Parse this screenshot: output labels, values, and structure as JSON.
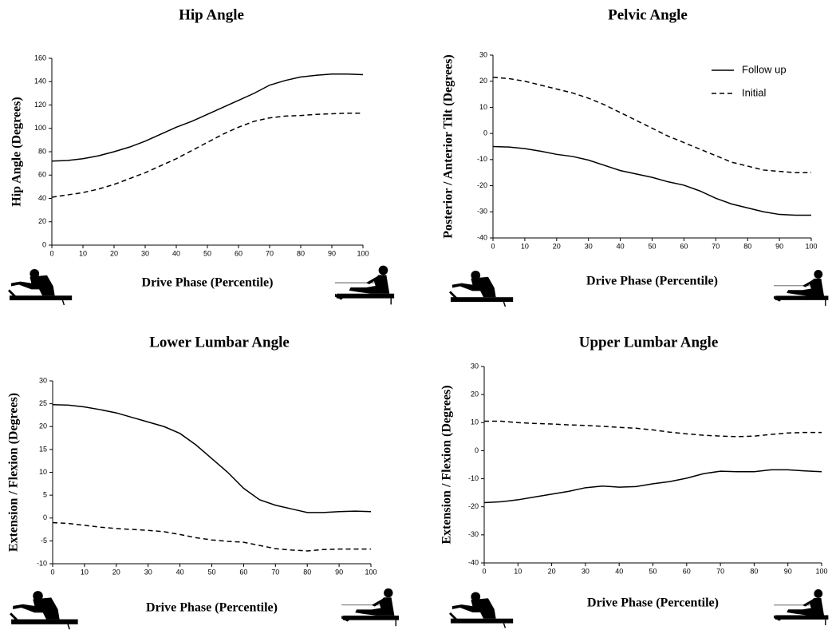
{
  "chart_data": [
    {
      "type": "line",
      "title": "Hip Angle",
      "x_label": "Drive Phase (Percentile)",
      "y_label": "Hip Angle (Degrees)",
      "x": [
        0,
        5,
        10,
        15,
        20,
        25,
        30,
        35,
        40,
        45,
        50,
        55,
        60,
        65,
        70,
        75,
        80,
        85,
        90,
        95,
        100
      ],
      "xlim": [
        0,
        100
      ],
      "xticks": [
        0,
        10,
        20,
        30,
        40,
        50,
        60,
        70,
        80,
        90,
        100
      ],
      "ylim": [
        0,
        160
      ],
      "yticks": [
        0,
        20,
        40,
        60,
        80,
        100,
        120,
        140,
        160
      ],
      "series": [
        {
          "color": "#000000",
          "dash": false,
          "values": [
            72,
            72.5,
            74,
            76.5,
            80,
            84,
            89,
            95,
            101,
            106,
            112,
            118,
            124,
            130,
            137,
            141,
            144,
            145.5,
            146.5,
            146.5,
            146
          ]
        },
        {
          "color": "#000000",
          "dash": true,
          "values": [
            41,
            43,
            45,
            48,
            52,
            57,
            62,
            68,
            74,
            81,
            88,
            95,
            101,
            106,
            109,
            110.5,
            111,
            112,
            112.5,
            113,
            113
          ]
        }
      ]
    },
    {
      "type": "line",
      "title": "Pelvic Angle",
      "x_label": "Drive Phase (Percentile)",
      "y_label": "Posterior / Anterior Tilt (Degrees)",
      "x": [
        0,
        5,
        10,
        15,
        20,
        25,
        30,
        35,
        40,
        45,
        50,
        55,
        60,
        65,
        70,
        75,
        80,
        85,
        90,
        95,
        100
      ],
      "xlim": [
        0,
        100
      ],
      "xticks": [
        0,
        10,
        20,
        30,
        40,
        50,
        60,
        70,
        80,
        90,
        100
      ],
      "ylim": [
        -40,
        30
      ],
      "yticks": [
        -40,
        -30,
        -20,
        -10,
        0,
        10,
        20,
        30
      ],
      "legend": "upper right",
      "series": [
        {
          "name": "Follow up",
          "color": "#000000",
          "dash": false,
          "values": [
            -5,
            -5.2,
            -5.8,
            -6.8,
            -8,
            -8.8,
            -10.2,
            -12.2,
            -14.2,
            -15.5,
            -16.8,
            -18.5,
            -19.8,
            -22,
            -24.8,
            -27,
            -28.5,
            -30,
            -31,
            -31.3,
            -31.3
          ]
        },
        {
          "name": "Initial",
          "color": "#000000",
          "dash": true,
          "values": [
            21.5,
            21,
            20,
            18.5,
            17,
            15.5,
            13.5,
            11,
            8,
            5,
            2,
            -1,
            -3.5,
            -6,
            -8.5,
            -11,
            -12.5,
            -14,
            -14.5,
            -15,
            -15
          ]
        }
      ]
    },
    {
      "type": "line",
      "title": "Lower Lumbar Angle",
      "x_label": "Drive Phase (Percentile)",
      "y_label": "Extension / Flexion (Degrees)",
      "x": [
        0,
        5,
        10,
        15,
        20,
        25,
        30,
        35,
        40,
        45,
        50,
        55,
        60,
        65,
        70,
        75,
        80,
        85,
        90,
        95,
        100
      ],
      "xlim": [
        0,
        100
      ],
      "xticks": [
        0,
        10,
        20,
        30,
        40,
        50,
        60,
        70,
        80,
        90,
        100
      ],
      "ylim": [
        -10,
        30
      ],
      "yticks": [
        -10,
        -5,
        0,
        5,
        10,
        15,
        20,
        25,
        30
      ],
      "series": [
        {
          "color": "#000000",
          "dash": false,
          "values": [
            24.8,
            24.7,
            24.3,
            23.7,
            23,
            22,
            21,
            20,
            18.5,
            16,
            13,
            10,
            6.5,
            4,
            2.8,
            2,
            1.2,
            1.2,
            1.4,
            1.5,
            1.4
          ]
        },
        {
          "color": "#000000",
          "dash": true,
          "values": [
            -1,
            -1.2,
            -1.6,
            -2,
            -2.3,
            -2.5,
            -2.7,
            -3,
            -3.6,
            -4.3,
            -4.8,
            -5.1,
            -5.3,
            -6,
            -6.7,
            -7,
            -7.2,
            -6.9,
            -6.8,
            -6.8,
            -6.8
          ]
        }
      ]
    },
    {
      "type": "line",
      "title": "Upper Lumbar Angle",
      "x_label": "Drive Phase (Percentile)",
      "y_label": "Extension / Flexion (Degrees)",
      "x": [
        0,
        5,
        10,
        15,
        20,
        25,
        30,
        35,
        40,
        45,
        50,
        55,
        60,
        65,
        70,
        75,
        80,
        85,
        90,
        95,
        100
      ],
      "xlim": [
        0,
        100
      ],
      "xticks": [
        0,
        10,
        20,
        30,
        40,
        50,
        60,
        70,
        80,
        90,
        100
      ],
      "ylim": [
        -40,
        30
      ],
      "yticks": [
        -40,
        -30,
        -20,
        -10,
        0,
        10,
        20,
        30
      ],
      "series": [
        {
          "color": "#000000",
          "dash": false,
          "values": [
            -18.5,
            -18.2,
            -17.5,
            -16.5,
            -15.5,
            -14.5,
            -13.2,
            -12.6,
            -13,
            -12.8,
            -11.8,
            -11,
            -9.8,
            -8.2,
            -7.3,
            -7.5,
            -7.5,
            -6.8,
            -6.8,
            -7.2,
            -7.5
          ]
        },
        {
          "color": "#000000",
          "dash": true,
          "values": [
            10.5,
            10.5,
            10,
            9.7,
            9.5,
            9.2,
            9,
            8.7,
            8.3,
            8,
            7.4,
            6.6,
            6,
            5.5,
            5.2,
            5,
            5.2,
            5.8,
            6.3,
            6.5,
            6.5
          ]
        }
      ]
    }
  ]
}
